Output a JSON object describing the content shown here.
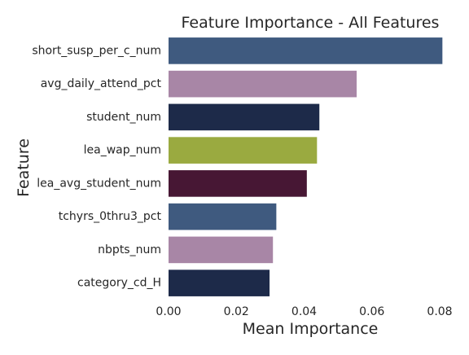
{
  "chart_data": {
    "type": "bar",
    "orientation": "horizontal",
    "title": "Feature Importance - All Features",
    "xlabel": "Mean Importance",
    "ylabel": "Feature",
    "categories": [
      "short_susp_per_c_num",
      "avg_daily_attend_pct",
      "student_num",
      "lea_wap_num",
      "lea_avg_student_num",
      "tchyrs_0thru3_pct",
      "nbpts_num",
      "category_cd_H"
    ],
    "values": [
      0.0808,
      0.0555,
      0.0445,
      0.0438,
      0.0408,
      0.0318,
      0.0308,
      0.0298
    ],
    "colors": [
      "#3f5a7f",
      "#a886a6",
      "#1d2a49",
      "#9aaa40",
      "#471734",
      "#3f5a7f",
      "#a886a6",
      "#1d2a49"
    ],
    "xlim": [
      0,
      0.08
    ],
    "xticks": [
      "0.00",
      "0.02",
      "0.04",
      "0.06",
      "0.08"
    ],
    "xtick_values": [
      0,
      0.02,
      0.04,
      0.06,
      0.08
    ],
    "grid": false
  }
}
